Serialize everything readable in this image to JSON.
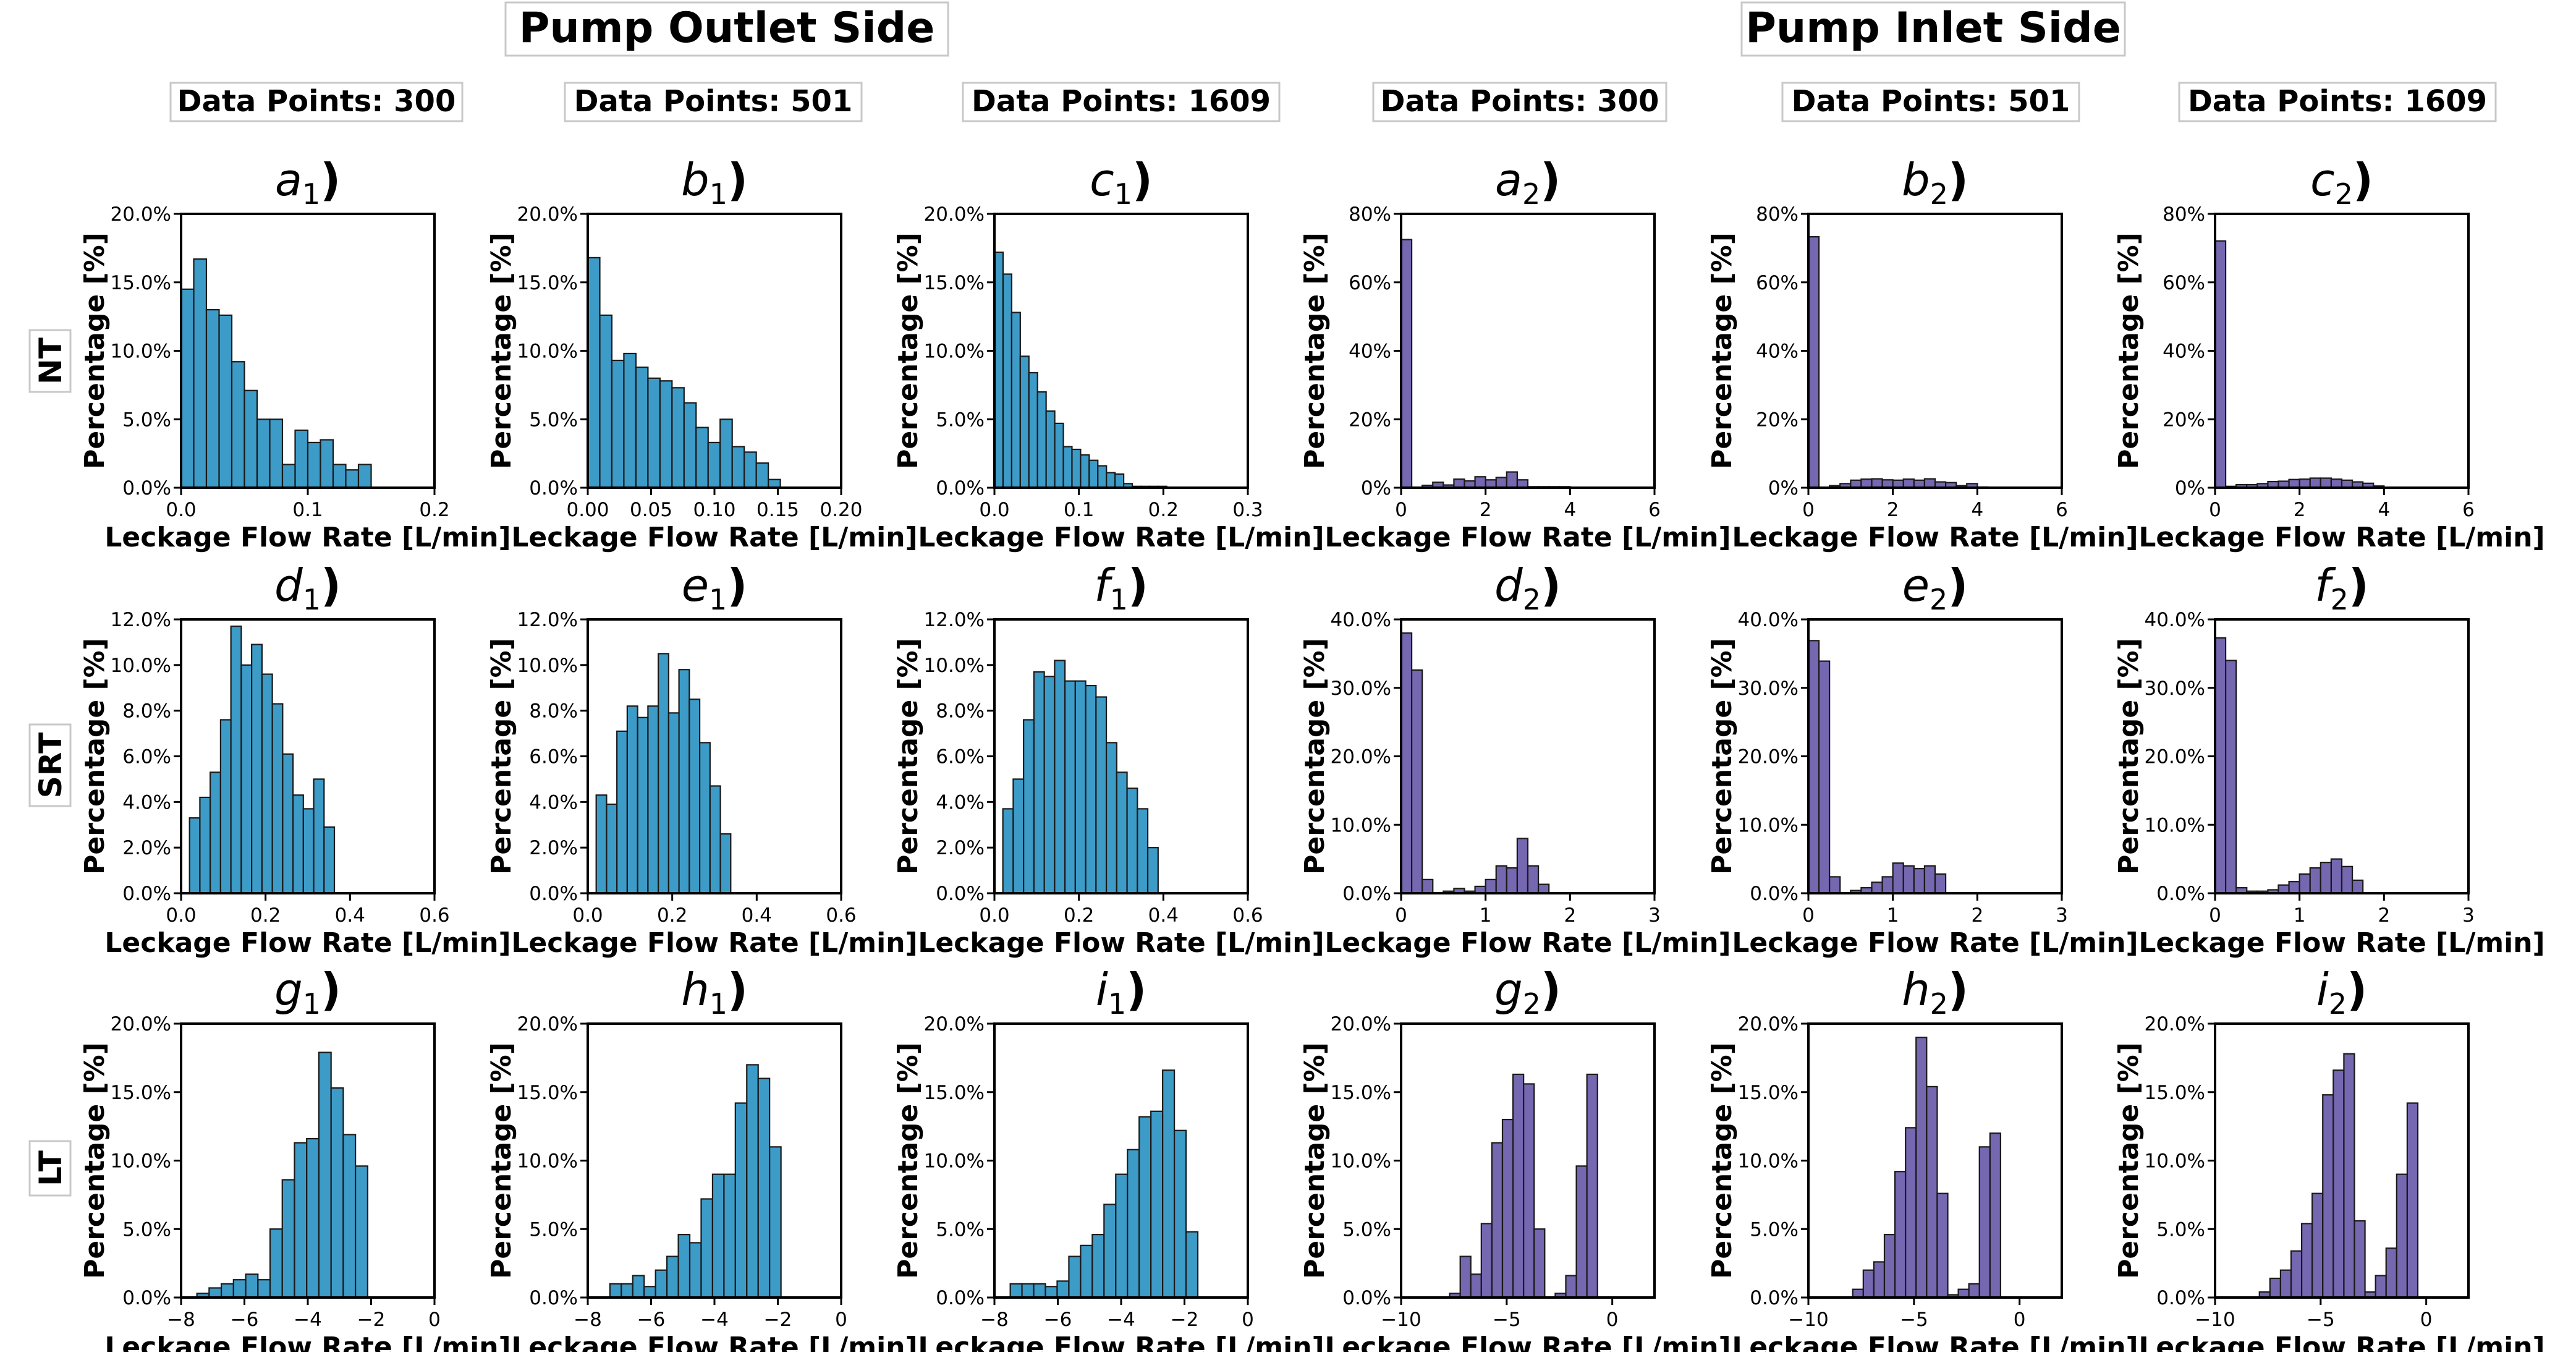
{
  "figure": {
    "section_titles": [
      "Pump Outlet Side",
      "Pump Inlet Side"
    ],
    "column_headers": [
      "Data Points: 300",
      "Data Points: 501",
      "Data Points: 1609",
      "Data Points: 300",
      "Data Points: 501",
      "Data Points: 1609"
    ],
    "row_labels": [
      "NT",
      "SRT",
      "LT"
    ],
    "colors": {
      "outlet": "#3d9bc7",
      "inlet": "#7567b0",
      "edge": "#1a1a1a"
    }
  },
  "chart_data": [
    {
      "type": "bar",
      "panel": "a",
      "sub": "1",
      "row": 0,
      "col": 0,
      "side": "outlet",
      "xlabel": "Leckage Flow Rate [L/min]",
      "ylabel": "Percentage [%]",
      "xlim": [
        0,
        0.2
      ],
      "ylim": [
        0,
        20
      ],
      "xticks": [
        0,
        0.1,
        0.2
      ],
      "xtick_labels": [
        "0.0",
        "0.1",
        "0.2"
      ],
      "yticks": [
        0,
        5,
        10,
        15,
        20
      ],
      "ytick_labels": [
        "0.0%",
        "5.0%",
        "10.0%",
        "15.0%",
        "20.0%"
      ],
      "bin_start": 0,
      "bin_width": 0.01,
      "values": [
        14.5,
        16.7,
        13.0,
        12.6,
        9.2,
        7.1,
        5.0,
        5.0,
        1.7,
        4.2,
        3.3,
        3.5,
        1.7,
        1.3,
        1.7
      ]
    },
    {
      "type": "bar",
      "panel": "b",
      "sub": "1",
      "row": 0,
      "col": 1,
      "side": "outlet",
      "xlabel": "Leckage Flow Rate [L/min]",
      "ylabel": "Percentage [%]",
      "xlim": [
        0,
        0.2
      ],
      "ylim": [
        0,
        20
      ],
      "xticks": [
        0,
        0.05,
        0.1,
        0.15,
        0.2
      ],
      "xtick_labels": [
        "0.00",
        "0.05",
        "0.10",
        "0.15",
        "0.20"
      ],
      "yticks": [
        0,
        5,
        10,
        15,
        20
      ],
      "ytick_labels": [
        "0.0%",
        "5.0%",
        "10.0%",
        "15.0%",
        "20.0%"
      ],
      "bin_start": 0,
      "bin_width": 0.0095,
      "values": [
        16.8,
        12.6,
        9.3,
        9.8,
        8.8,
        8.0,
        7.8,
        7.3,
        6.2,
        4.4,
        3.3,
        5.0,
        3.0,
        2.6,
        1.8,
        0.6
      ]
    },
    {
      "type": "bar",
      "panel": "c",
      "sub": "1",
      "row": 0,
      "col": 2,
      "side": "outlet",
      "xlabel": "Leckage Flow Rate [L/min]",
      "ylabel": "Percentage [%]",
      "xlim": [
        0,
        0.3
      ],
      "ylim": [
        0,
        20
      ],
      "xticks": [
        0,
        0.1,
        0.2,
        0.3
      ],
      "xtick_labels": [
        "0.0",
        "0.1",
        "0.2",
        "0.3"
      ],
      "yticks": [
        0,
        5,
        10,
        15,
        20
      ],
      "ytick_labels": [
        "0.0%",
        "5.0%",
        "10.0%",
        "15.0%",
        "20.0%"
      ],
      "bin_start": 0,
      "bin_width": 0.0102,
      "values": [
        17.2,
        15.6,
        12.8,
        9.6,
        8.4,
        7.0,
        5.6,
        4.7,
        3.0,
        2.8,
        2.4,
        2.0,
        1.6,
        1.1,
        1.0,
        0.3,
        0.1,
        0.1,
        0.1,
        0.1
      ]
    },
    {
      "type": "bar",
      "panel": "a",
      "sub": "2",
      "row": 0,
      "col": 3,
      "side": "inlet",
      "xlabel": "Leckage Flow Rate [L/min]",
      "ylabel": "Percentage [%]",
      "xlim": [
        0,
        6
      ],
      "ylim": [
        0,
        80
      ],
      "xticks": [
        0,
        2,
        4,
        6
      ],
      "xtick_labels": [
        "0",
        "2",
        "4",
        "6"
      ],
      "yticks": [
        0,
        20,
        40,
        60,
        80
      ],
      "ytick_labels": [
        "0%",
        "20%",
        "40%",
        "60%",
        "80%"
      ],
      "bin_start": 0,
      "bin_width": 0.25,
      "values": [
        72.5,
        0,
        0.7,
        1.6,
        0.8,
        2.5,
        2.0,
        3.2,
        2.3,
        3.0,
        4.6,
        2.3,
        0.3,
        0.3,
        0.3,
        0.3
      ]
    },
    {
      "type": "bar",
      "panel": "b",
      "sub": "2",
      "row": 0,
      "col": 4,
      "side": "inlet",
      "xlabel": "Leckage Flow Rate [L/min]",
      "ylabel": "Percentage [%]",
      "xlim": [
        0,
        6
      ],
      "ylim": [
        0,
        80
      ],
      "xticks": [
        0,
        2,
        4,
        6
      ],
      "xtick_labels": [
        "0",
        "2",
        "4",
        "6"
      ],
      "yticks": [
        0,
        20,
        40,
        60,
        80
      ],
      "ytick_labels": [
        "0%",
        "20%",
        "40%",
        "60%",
        "80%"
      ],
      "bin_start": 0,
      "bin_width": 0.25,
      "values": [
        73.3,
        0,
        0.6,
        1.2,
        2.2,
        2.5,
        2.6,
        2.3,
        2.2,
        2.5,
        2.2,
        2.6,
        1.7,
        1.5,
        0.6,
        1.2,
        0.2
      ]
    },
    {
      "type": "bar",
      "panel": "c",
      "sub": "2",
      "row": 0,
      "col": 5,
      "side": "inlet",
      "xlabel": "Leckage Flow Rate [L/min]",
      "ylabel": "Percentage [%]",
      "xlim": [
        0,
        6
      ],
      "ylim": [
        0,
        80
      ],
      "xticks": [
        0,
        2,
        4,
        6
      ],
      "xtick_labels": [
        "0",
        "2",
        "4",
        "6"
      ],
      "yticks": [
        0,
        20,
        40,
        60,
        80
      ],
      "ytick_labels": [
        "0%",
        "20%",
        "40%",
        "60%",
        "80%"
      ],
      "bin_start": 0,
      "bin_width": 0.25,
      "values": [
        72.1,
        0.4,
        0.9,
        0.9,
        1.2,
        1.8,
        1.9,
        2.4,
        2.5,
        2.8,
        2.8,
        2.5,
        2.2,
        1.7,
        1.3,
        0.5
      ]
    },
    {
      "type": "bar",
      "panel": "d",
      "sub": "1",
      "row": 1,
      "col": 0,
      "side": "outlet",
      "xlabel": "Leckage Flow Rate [L/min]",
      "ylabel": "Percentage [%]",
      "xlim": [
        0,
        0.6
      ],
      "ylim": [
        0,
        12
      ],
      "xticks": [
        0,
        0.2,
        0.4,
        0.6
      ],
      "xtick_labels": [
        "0.0",
        "0.2",
        "0.4",
        "0.6"
      ],
      "yticks": [
        0,
        2,
        4,
        6,
        8,
        10,
        12
      ],
      "ytick_labels": [
        "0.0%",
        "2.0%",
        "4.0%",
        "6.0%",
        "8.0%",
        "10.0%",
        "12.0%"
      ],
      "bin_start": 0.02,
      "bin_width": 0.0245,
      "values": [
        3.3,
        4.2,
        5.3,
        7.6,
        11.7,
        10.0,
        10.9,
        9.6,
        8.3,
        6.1,
        4.3,
        3.7,
        5.0,
        2.9
      ]
    },
    {
      "type": "bar",
      "panel": "e",
      "sub": "1",
      "row": 1,
      "col": 1,
      "side": "outlet",
      "xlabel": "Leckage Flow Rate [L/min]",
      "ylabel": "Percentage [%]",
      "xlim": [
        0,
        0.6
      ],
      "ylim": [
        0,
        12
      ],
      "xticks": [
        0,
        0.2,
        0.4,
        0.6
      ],
      "xtick_labels": [
        "0.0",
        "0.2",
        "0.4",
        "0.6"
      ],
      "yticks": [
        0,
        2,
        4,
        6,
        8,
        10,
        12
      ],
      "ytick_labels": [
        "0.0%",
        "2.0%",
        "4.0%",
        "6.0%",
        "8.0%",
        "10.0%",
        "12.0%"
      ],
      "bin_start": 0.02,
      "bin_width": 0.0245,
      "values": [
        4.3,
        3.9,
        7.1,
        8.2,
        7.7,
        8.2,
        10.5,
        7.9,
        9.8,
        8.5,
        6.6,
        4.7,
        2.6
      ]
    },
    {
      "type": "bar",
      "panel": "f",
      "sub": "1",
      "row": 1,
      "col": 2,
      "side": "outlet",
      "xlabel": "Leckage Flow Rate [L/min]",
      "ylabel": "Percentage [%]",
      "xlim": [
        0,
        0.6
      ],
      "ylim": [
        0,
        12
      ],
      "xticks": [
        0,
        0.2,
        0.4,
        0.6
      ],
      "xtick_labels": [
        "0.0",
        "0.2",
        "0.4",
        "0.6"
      ],
      "yticks": [
        0,
        2,
        4,
        6,
        8,
        10,
        12
      ],
      "ytick_labels": [
        "0.0%",
        "2.0%",
        "4.0%",
        "6.0%",
        "8.0%",
        "10.0%",
        "12.0%"
      ],
      "bin_start": 0.02,
      "bin_width": 0.0245,
      "values": [
        3.7,
        5.0,
        7.6,
        9.7,
        9.5,
        10.2,
        9.3,
        9.3,
        9.1,
        8.6,
        6.6,
        5.3,
        4.6,
        3.7,
        2.0
      ]
    },
    {
      "type": "bar",
      "panel": "d",
      "sub": "2",
      "row": 1,
      "col": 3,
      "side": "inlet",
      "xlabel": "Leckage Flow Rate [L/min]",
      "ylabel": "Percentage [%]",
      "xlim": [
        0,
        3
      ],
      "ylim": [
        0,
        40
      ],
      "xticks": [
        0,
        1,
        2,
        3
      ],
      "xtick_labels": [
        "0",
        "1",
        "2",
        "3"
      ],
      "yticks": [
        0,
        10,
        20,
        30,
        40
      ],
      "ytick_labels": [
        "0.0%",
        "10.0%",
        "20.0%",
        "30.0%",
        "40.0%"
      ],
      "bin_start": 0,
      "bin_width": 0.125,
      "values": [
        38.0,
        32.6,
        2.0,
        0,
        0.3,
        0.7,
        0.3,
        1.0,
        2.0,
        4.0,
        3.7,
        8.0,
        4.0,
        1.3
      ]
    },
    {
      "type": "bar",
      "panel": "e",
      "sub": "2",
      "row": 1,
      "col": 4,
      "side": "inlet",
      "xlabel": "Leckage Flow Rate [L/min]",
      "ylabel": "Percentage [%]",
      "xlim": [
        0,
        3
      ],
      "ylim": [
        0,
        40
      ],
      "xticks": [
        0,
        1,
        2,
        3
      ],
      "xtick_labels": [
        "0",
        "1",
        "2",
        "3"
      ],
      "yticks": [
        0,
        10,
        20,
        30,
        40
      ],
      "ytick_labels": [
        "0.0%",
        "10.0%",
        "20.0%",
        "30.0%",
        "40.0%"
      ],
      "bin_start": 0,
      "bin_width": 0.125,
      "values": [
        36.9,
        33.9,
        2.4,
        0,
        0.4,
        0.8,
        1.6,
        2.4,
        4.4,
        4.0,
        3.6,
        4.0,
        2.8
      ]
    },
    {
      "type": "bar",
      "panel": "f",
      "sub": "2",
      "row": 1,
      "col": 5,
      "side": "inlet",
      "xlabel": "Leckage Flow Rate [L/min]",
      "ylabel": "Percentage [%]",
      "xlim": [
        0,
        3
      ],
      "ylim": [
        0,
        40
      ],
      "xticks": [
        0,
        1,
        2,
        3
      ],
      "xtick_labels": [
        "0",
        "1",
        "2",
        "3"
      ],
      "yticks": [
        0,
        10,
        20,
        30,
        40
      ],
      "ytick_labels": [
        "0.0%",
        "10.0%",
        "20.0%",
        "30.0%",
        "40.0%"
      ],
      "bin_start": 0,
      "bin_width": 0.125,
      "values": [
        37.3,
        34.0,
        0.8,
        0.3,
        0.3,
        0.5,
        1.2,
        1.7,
        2.8,
        3.7,
        4.5,
        5.0,
        3.9,
        1.9
      ]
    },
    {
      "type": "bar",
      "panel": "g",
      "sub": "1",
      "row": 2,
      "col": 0,
      "side": "outlet",
      "xlabel": "Leckage Flow Rate [L/min]",
      "ylabel": "Percentage [%]",
      "xlim": [
        -8,
        0
      ],
      "ylim": [
        0,
        20
      ],
      "xticks": [
        -8,
        -6,
        -4,
        -2,
        0
      ],
      "xtick_labels": [
        "−8",
        "−6",
        "−4",
        "−2",
        "0"
      ],
      "yticks": [
        0,
        5,
        10,
        15,
        20
      ],
      "ytick_labels": [
        "0.0%",
        "5.0%",
        "10.0%",
        "15.0%",
        "20.0%"
      ],
      "bin_start": -7.5,
      "bin_width": 0.385,
      "values": [
        0.3,
        0.7,
        1.0,
        1.3,
        1.7,
        1.3,
        5.0,
        8.6,
        11.3,
        11.6,
        17.9,
        15.3,
        11.9,
        9.6
      ]
    },
    {
      "type": "bar",
      "panel": "h",
      "sub": "1",
      "row": 2,
      "col": 1,
      "side": "outlet",
      "xlabel": "Leckage Flow Rate [L/min]",
      "ylabel": "Percentage [%]",
      "xlim": [
        -8,
        0
      ],
      "ylim": [
        0,
        20
      ],
      "xticks": [
        -8,
        -6,
        -4,
        -2,
        0
      ],
      "xtick_labels": [
        "−8",
        "−6",
        "−4",
        "−2",
        "0"
      ],
      "yticks": [
        0,
        5,
        10,
        15,
        20
      ],
      "ytick_labels": [
        "0.0%",
        "5.0%",
        "10.0%",
        "15.0%",
        "20.0%"
      ],
      "bin_start": -7.3,
      "bin_width": 0.36,
      "values": [
        1.0,
        1.0,
        1.6,
        0.8,
        2.0,
        3.0,
        4.6,
        4.0,
        7.2,
        9.0,
        9.0,
        14.2,
        17.0,
        16.0,
        11.0
      ]
    },
    {
      "type": "bar",
      "panel": "i",
      "sub": "1",
      "row": 2,
      "col": 2,
      "side": "outlet",
      "xlabel": "Leckage Flow Rate [L/min]",
      "ylabel": "Percentage [%]",
      "xlim": [
        -8,
        0
      ],
      "ylim": [
        0,
        20
      ],
      "xticks": [
        -8,
        -6,
        -4,
        -2,
        0
      ],
      "xtick_labels": [
        "−8",
        "−6",
        "−4",
        "−2",
        "0"
      ],
      "yticks": [
        0,
        5,
        10,
        15,
        20
      ],
      "ytick_labels": [
        "0.0%",
        "5.0%",
        "10.0%",
        "15.0%",
        "20.0%"
      ],
      "bin_start": -7.5,
      "bin_width": 0.37,
      "values": [
        1.0,
        1.0,
        1.0,
        0.8,
        1.2,
        3.0,
        3.8,
        4.6,
        6.8,
        9.0,
        10.8,
        13.2,
        13.6,
        16.6,
        12.2,
        4.8
      ]
    },
    {
      "type": "bar",
      "panel": "g",
      "sub": "2",
      "row": 2,
      "col": 3,
      "side": "inlet",
      "xlabel": "Leckage Flow Rate [L/min]",
      "ylabel": "Percentage [%]",
      "xlim": [
        -10,
        2
      ],
      "ylim": [
        0,
        20
      ],
      "xticks": [
        -10,
        -5,
        0
      ],
      "xtick_labels": [
        "−10",
        "−5",
        "0"
      ],
      "yticks": [
        0,
        5,
        10,
        15,
        20
      ],
      "ytick_labels": [
        "0.0%",
        "5.0%",
        "10.0%",
        "15.0%",
        "20.0%"
      ],
      "bin_start": -7.7,
      "bin_width": 0.5,
      "values": [
        0.3,
        3.0,
        1.7,
        5.4,
        11.3,
        13.0,
        16.3,
        15.6,
        5.0,
        0,
        0.3,
        1.6,
        9.6,
        16.3
      ]
    },
    {
      "type": "bar",
      "panel": "h",
      "sub": "2",
      "row": 2,
      "col": 4,
      "side": "inlet",
      "xlabel": "Leckage Flow Rate [L/min]",
      "ylabel": "Percentage [%]",
      "xlim": [
        -10,
        2
      ],
      "ylim": [
        0,
        20
      ],
      "xticks": [
        -10,
        -5,
        0
      ],
      "xtick_labels": [
        "−10",
        "−5",
        "0"
      ],
      "yticks": [
        0,
        5,
        10,
        15,
        20
      ],
      "ytick_labels": [
        "0.0%",
        "5.0%",
        "10.0%",
        "15.0%",
        "20.0%"
      ],
      "bin_start": -7.9,
      "bin_width": 0.5,
      "values": [
        0.6,
        2.0,
        2.6,
        4.6,
        9.2,
        12.4,
        19.0,
        15.4,
        7.6,
        0.2,
        0.6,
        1.0,
        11.0,
        12.0
      ]
    },
    {
      "type": "bar",
      "panel": "i",
      "sub": "2",
      "row": 2,
      "col": 5,
      "side": "inlet",
      "xlabel": "Leckage Flow Rate [L/min]",
      "ylabel": "Percentage [%]",
      "xlim": [
        -10,
        2
      ],
      "ylim": [
        0,
        20
      ],
      "xticks": [
        -10,
        -5,
        0
      ],
      "xtick_labels": [
        "−10",
        "−5",
        "0"
      ],
      "yticks": [
        0,
        5,
        10,
        15,
        20
      ],
      "ytick_labels": [
        "0.0%",
        "5.0%",
        "10.0%",
        "15.0%",
        "20.0%"
      ],
      "bin_start": -7.9,
      "bin_width": 0.5,
      "values": [
        0.4,
        1.4,
        2.0,
        3.4,
        5.4,
        7.6,
        14.8,
        16.6,
        17.8,
        5.6,
        0.4,
        1.6,
        3.6,
        9.0,
        14.2
      ]
    }
  ]
}
